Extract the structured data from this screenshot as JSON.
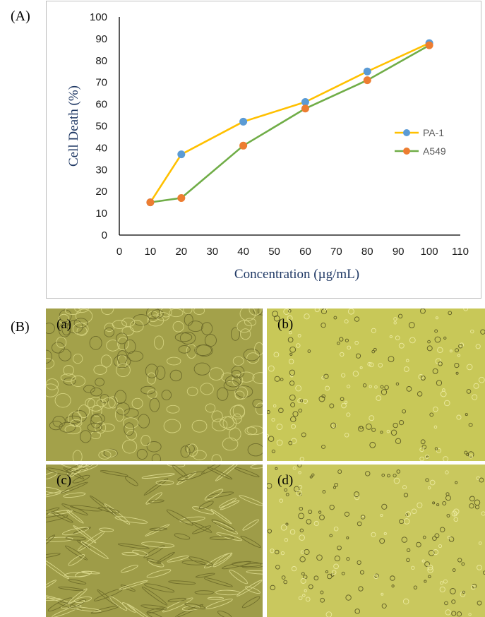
{
  "panels": {
    "a_label": "(A)",
    "b_label": "(B)"
  },
  "chart_data": {
    "type": "line",
    "xlabel": "Concentration (µg/mL)",
    "ylabel": "Cell Death (%)",
    "xlim": [
      0,
      110
    ],
    "ylim": [
      0,
      100
    ],
    "xticks": [
      0,
      10,
      20,
      30,
      40,
      50,
      60,
      70,
      80,
      90,
      100,
      110
    ],
    "yticks": [
      0,
      10,
      20,
      30,
      40,
      50,
      60,
      70,
      80,
      90,
      100
    ],
    "grid": false,
    "legend_position": "right",
    "series": [
      {
        "name": "PA-1",
        "line_color": "#FFC000",
        "marker_color": "#5B9BD5",
        "x": [
          10,
          20,
          40,
          60,
          80,
          100
        ],
        "y": [
          15,
          37,
          52,
          61,
          75,
          88
        ]
      },
      {
        "name": "A549",
        "line_color": "#70AD47",
        "marker_color": "#ED7D31",
        "x": [
          10,
          20,
          40,
          60,
          80,
          100
        ],
        "y": [
          15,
          17,
          41,
          58,
          71,
          87
        ]
      }
    ]
  },
  "micrographs": [
    {
      "label": "(a)",
      "tint": "#a3a14a"
    },
    {
      "label": "(b)",
      "tint": "#c8c858"
    },
    {
      "label": "(c)",
      "tint": "#9e9c48"
    },
    {
      "label": "(d)",
      "tint": "#c9c85e"
    }
  ]
}
